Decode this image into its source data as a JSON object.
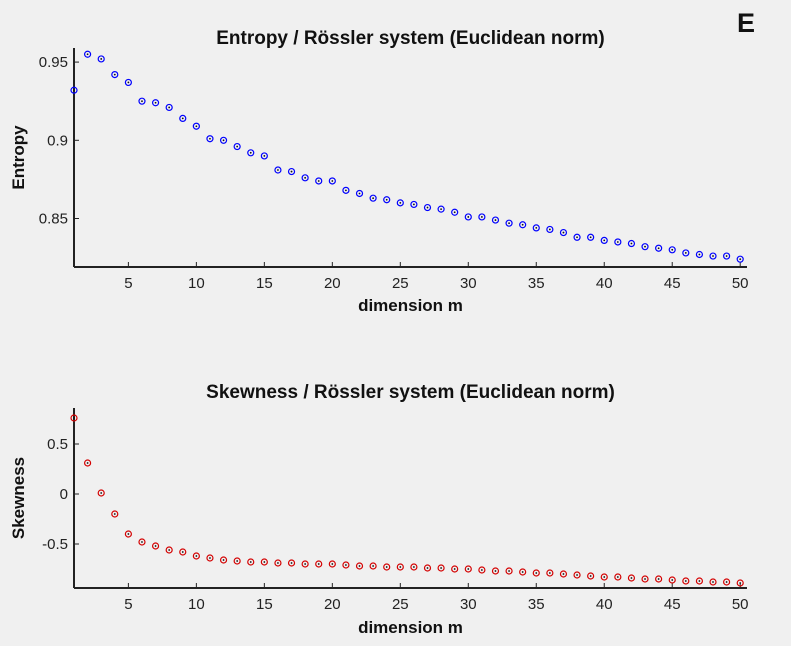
{
  "panel_label": "E",
  "chart_data": [
    {
      "type": "scatter",
      "title": "Entropy / Rössler system (Euclidean norm)",
      "xlabel": "dimension m",
      "ylabel": "Entropy",
      "xlim": [
        1,
        50.5
      ],
      "ylim": [
        0.819,
        0.959
      ],
      "xticks": [
        5,
        10,
        15,
        20,
        25,
        30,
        35,
        40,
        45,
        50
      ],
      "xticklabels": [
        "5",
        "10",
        "15",
        "20",
        "25",
        "30",
        "35",
        "40",
        "45",
        "50"
      ],
      "yticks": [
        0.85,
        0.9,
        0.95
      ],
      "yticklabels": [
        "0.85",
        "0.9",
        "0.95"
      ],
      "marker_color": "#0000ff",
      "x": [
        1,
        2,
        3,
        4,
        5,
        6,
        7,
        8,
        9,
        10,
        11,
        12,
        13,
        14,
        15,
        16,
        17,
        18,
        19,
        20,
        21,
        22,
        23,
        24,
        25,
        26,
        27,
        28,
        29,
        30,
        31,
        32,
        33,
        34,
        35,
        36,
        37,
        38,
        39,
        40,
        41,
        42,
        43,
        44,
        45,
        46,
        47,
        48,
        49,
        50
      ],
      "y": [
        0.932,
        0.955,
        0.952,
        0.942,
        0.937,
        0.925,
        0.924,
        0.921,
        0.914,
        0.909,
        0.901,
        0.9,
        0.896,
        0.892,
        0.89,
        0.881,
        0.88,
        0.876,
        0.874,
        0.874,
        0.868,
        0.866,
        0.863,
        0.862,
        0.86,
        0.859,
        0.857,
        0.856,
        0.854,
        0.851,
        0.851,
        0.849,
        0.847,
        0.846,
        0.844,
        0.843,
        0.841,
        0.838,
        0.838,
        0.836,
        0.835,
        0.834,
        0.832,
        0.831,
        0.83,
        0.828,
        0.827,
        0.826,
        0.826,
        0.824
      ]
    },
    {
      "type": "scatter",
      "title": "Skewness / Rössler system (Euclidean norm)",
      "xlabel": "dimension m",
      "ylabel": "Skewness",
      "xlim": [
        1,
        50.5
      ],
      "ylim": [
        -0.94,
        0.86
      ],
      "xticks": [
        5,
        10,
        15,
        20,
        25,
        30,
        35,
        40,
        45,
        50
      ],
      "xticklabels": [
        "5",
        "10",
        "15",
        "20",
        "25",
        "30",
        "35",
        "40",
        "45",
        "50"
      ],
      "yticks": [
        -0.5,
        0,
        0.5
      ],
      "yticklabels": [
        "-0.5",
        "0",
        "0.5"
      ],
      "marker_color": "#d40000",
      "x": [
        1,
        2,
        3,
        4,
        5,
        6,
        7,
        8,
        9,
        10,
        11,
        12,
        13,
        14,
        15,
        16,
        17,
        18,
        19,
        20,
        21,
        22,
        23,
        24,
        25,
        26,
        27,
        28,
        29,
        30,
        31,
        32,
        33,
        34,
        35,
        36,
        37,
        38,
        39,
        40,
        41,
        42,
        43,
        44,
        45,
        46,
        47,
        48,
        49,
        50
      ],
      "y": [
        0.76,
        0.31,
        0.01,
        -0.2,
        -0.4,
        -0.48,
        -0.52,
        -0.56,
        -0.58,
        -0.62,
        -0.64,
        -0.66,
        -0.67,
        -0.68,
        -0.68,
        -0.69,
        -0.69,
        -0.7,
        -0.7,
        -0.7,
        -0.71,
        -0.72,
        -0.72,
        -0.73,
        -0.73,
        -0.73,
        -0.74,
        -0.74,
        -0.75,
        -0.75,
        -0.76,
        -0.77,
        -0.77,
        -0.78,
        -0.79,
        -0.79,
        -0.8,
        -0.81,
        -0.82,
        -0.83,
        -0.83,
        -0.84,
        -0.85,
        -0.85,
        -0.86,
        -0.87,
        -0.87,
        -0.88,
        -0.88,
        -0.89
      ]
    }
  ]
}
